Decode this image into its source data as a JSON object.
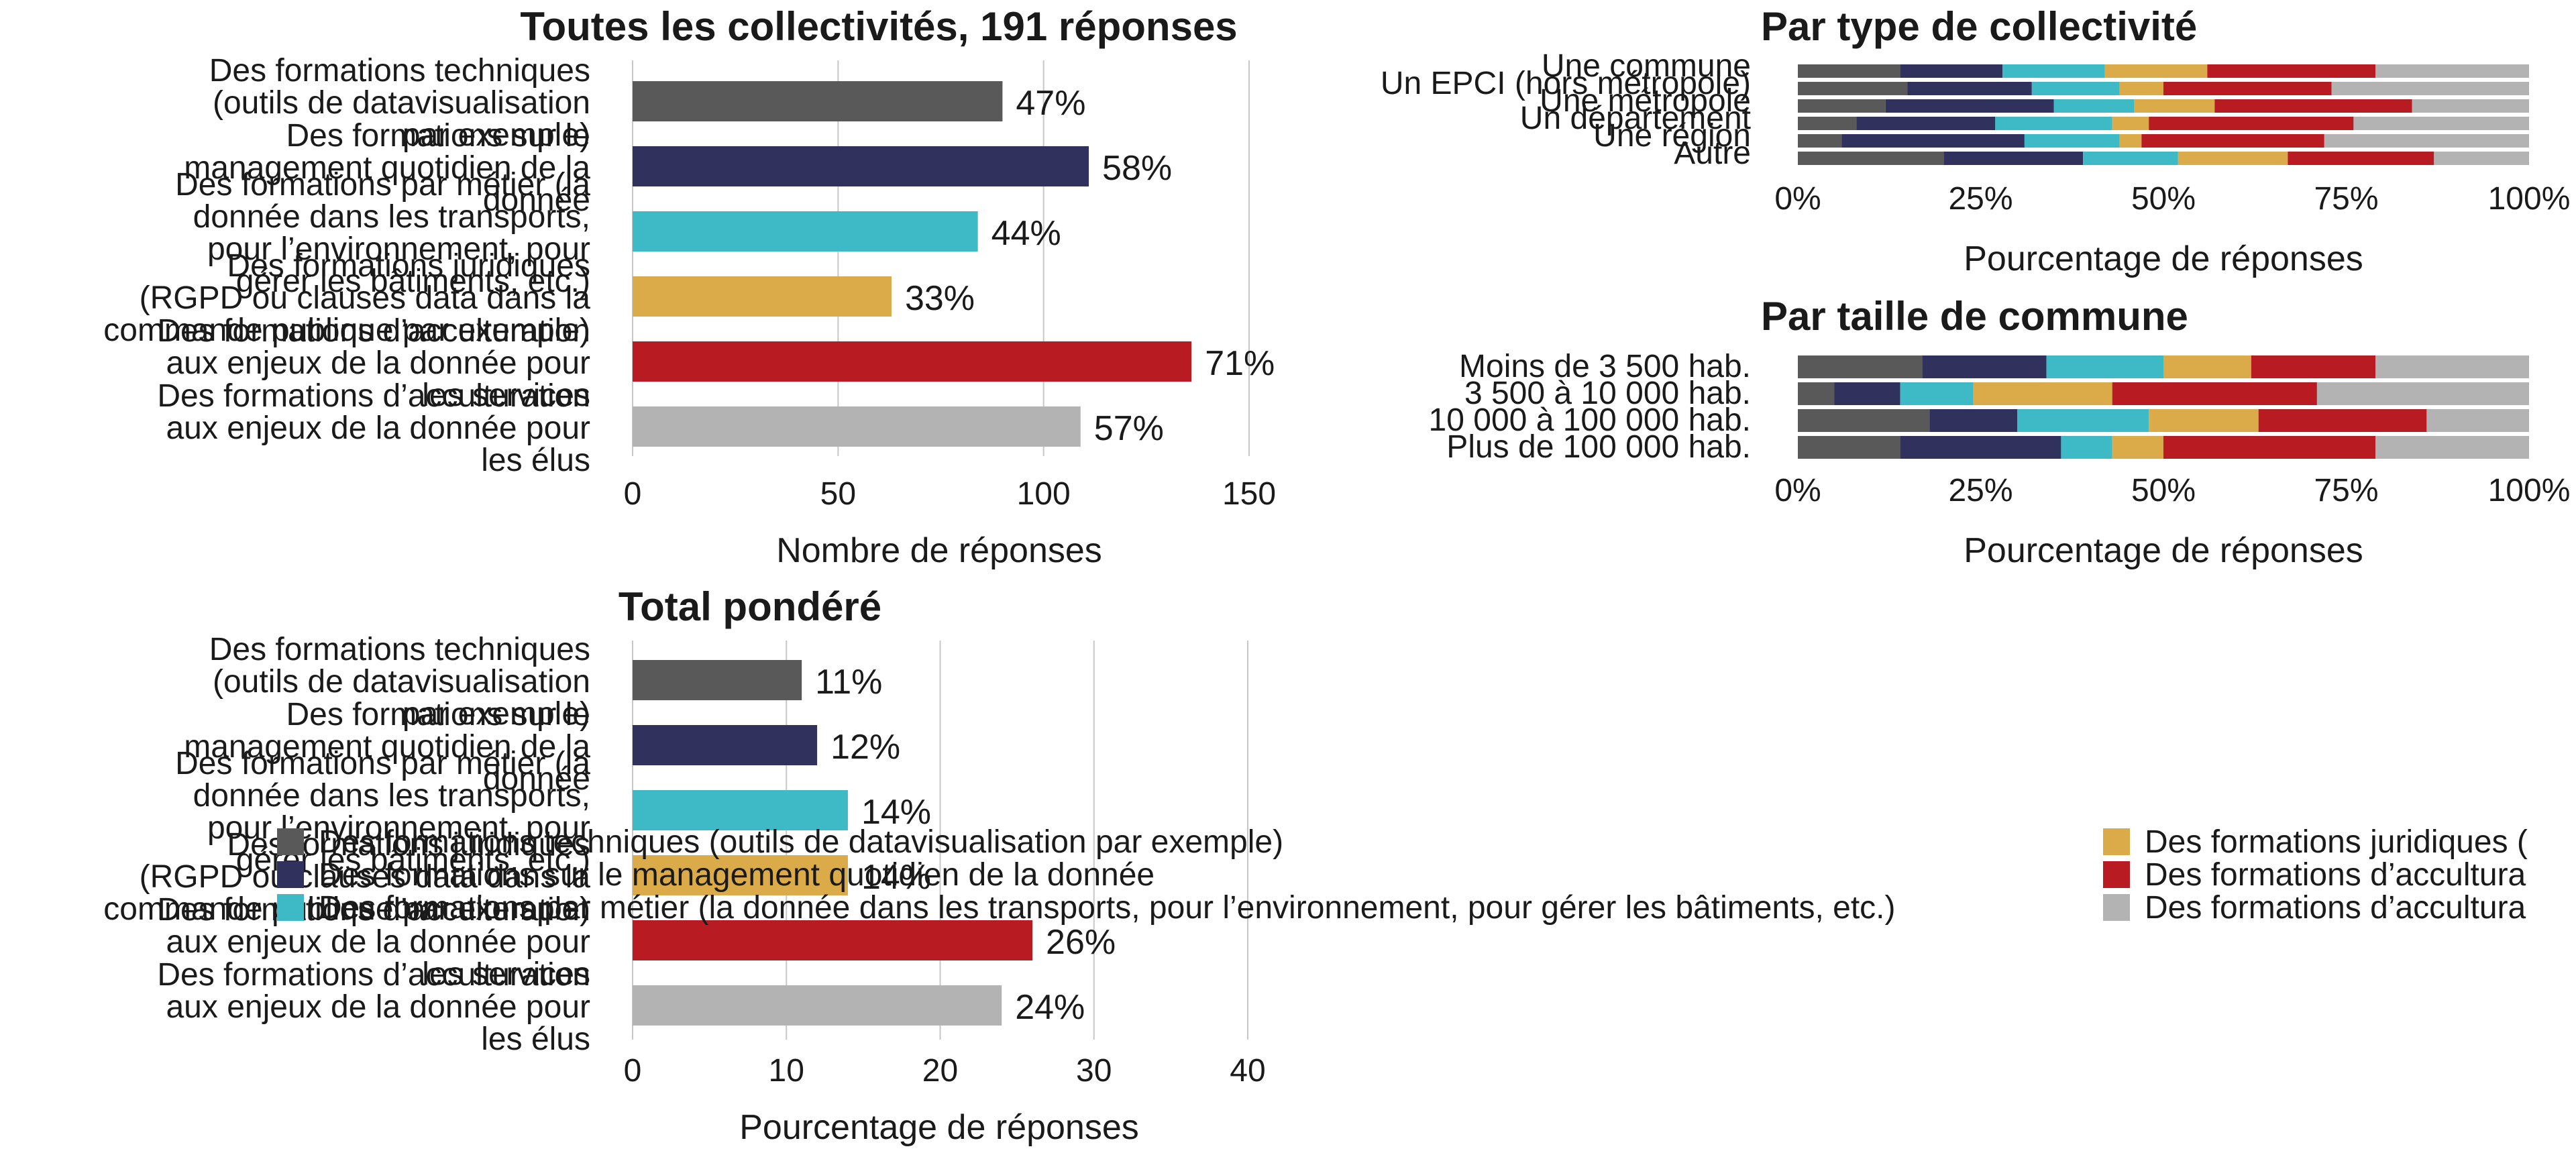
{
  "colors": {
    "techniques": "#595959",
    "management": "#31315e",
    "metier": "#3ebac6",
    "juridiques": "#dbab49",
    "acculturation_services": "#b81b21",
    "acculturation_elus": "#b3b3b3"
  },
  "legend": {
    "items": [
      {
        "label": "Des formations techniques (outils de datavisualisation par exemple)",
        "color": "#595959"
      },
      {
        "label": "Des formations sur le management quotidien de la donnée",
        "color": "#31315e"
      },
      {
        "label": "Des formations par métier (la donnée dans les transports, pour l’environnement, pour gérer les bâtiments, etc.)",
        "color": "#3ebac6"
      },
      {
        "label": "Des formations juridiques (",
        "color": "#dbab49"
      },
      {
        "label": "Des formations d’accultura",
        "color": "#b81b21"
      },
      {
        "label": "Des formations d’accultura",
        "color": "#b3b3b3"
      }
    ]
  },
  "chart_data": [
    {
      "id": "total",
      "type": "bar",
      "orientation": "horizontal",
      "title": "Toutes les collectivités, 191 réponses",
      "xlabel": "Nombre de réponses",
      "xlim": [
        0,
        150
      ],
      "xticks": [
        0,
        50,
        100,
        150
      ],
      "grid": true,
      "categories": [
        [
          "Des formations techniques",
          "(outils de datavisualisation",
          "par exemple)"
        ],
        [
          "Des formations sur le",
          "management quotidien de la",
          "donnée"
        ],
        [
          "Des formations par métier (la",
          "donnée dans les transports,",
          "pour l’environnement, pour",
          "gérer les bâtiments, etc.)"
        ],
        [
          "Des formations juridiques",
          "(RGPD ou clauses data dans la",
          "commande publique par exemple)"
        ],
        [
          "Des formations d’acculturation",
          "aux enjeux de la donnée pour",
          "les services"
        ],
        [
          "Des formations d’acculturation",
          "aux enjeux de la donnée pour",
          "les élus"
        ]
      ],
      "values": [
        90,
        111,
        84,
        63,
        136,
        109
      ],
      "data_labels": [
        "47%",
        "58%",
        "44%",
        "33%",
        "71%",
        "57%"
      ]
    },
    {
      "id": "by_type",
      "type": "bar",
      "orientation": "horizontal",
      "stacked": "percent",
      "title": "Par type de collectivité",
      "xlabel": "Pourcentage de réponses",
      "xlim": [
        0,
        100
      ],
      "xtick_labels": [
        "0%",
        "25%",
        "50%",
        "75%",
        "100%"
      ],
      "categories": [
        "Une commune",
        "Un EPCI (hors métropole)",
        "Une métropole",
        "Un département",
        "Une région",
        "Autre"
      ],
      "series": [
        {
          "values": [
            14,
            15,
            12,
            8,
            6,
            20
          ]
        },
        {
          "values": [
            14,
            17,
            23,
            19,
            25,
            19
          ]
        },
        {
          "values": [
            14,
            12,
            11,
            16,
            13,
            13
          ]
        },
        {
          "values": [
            14,
            6,
            11,
            5,
            3,
            15
          ]
        },
        {
          "values": [
            23,
            23,
            27,
            28,
            25,
            20
          ]
        },
        {
          "values": [
            21,
            27,
            16,
            24,
            28,
            13
          ]
        }
      ]
    },
    {
      "id": "by_size",
      "type": "bar",
      "orientation": "horizontal",
      "stacked": "percent",
      "title": "Par taille de commune",
      "xlabel": "Pourcentage de réponses",
      "xlim": [
        0,
        100
      ],
      "xtick_labels": [
        "0%",
        "25%",
        "50%",
        "75%",
        "100%"
      ],
      "categories": [
        "Moins de 3 500 hab.",
        "3 500 à 10 000 hab.",
        "10 000 à 100 000 hab.",
        "Plus de 100 000 hab."
      ],
      "series": [
        {
          "values": [
            17,
            5,
            18,
            14
          ]
        },
        {
          "values": [
            17,
            9,
            12,
            22
          ]
        },
        {
          "values": [
            16,
            10,
            18,
            7
          ]
        },
        {
          "values": [
            12,
            19,
            15,
            7
          ]
        },
        {
          "values": [
            17,
            28,
            23,
            29
          ]
        },
        {
          "values": [
            21,
            29,
            14,
            21
          ]
        }
      ]
    },
    {
      "id": "weighted",
      "type": "bar",
      "orientation": "horizontal",
      "title": "Total pondéré",
      "xlabel": "Pourcentage de réponses",
      "xlim": [
        0,
        40
      ],
      "xticks": [
        0,
        10,
        20,
        30,
        40
      ],
      "grid": true,
      "categories": [
        [
          "Des formations techniques",
          "(outils de datavisualisation",
          "par exemple)"
        ],
        [
          "Des formations sur le",
          "management quotidien de la",
          "donnée"
        ],
        [
          "Des formations par métier (la",
          "donnée dans les transports,",
          "pour l’environnement, pour",
          "gérer les bâtiments, etc.)"
        ],
        [
          "Des formations juridiques",
          "(RGPD ou clauses data dans la",
          "commande publique par exemple)"
        ],
        [
          "Des formations d’acculturation",
          "aux enjeux de la donnée pour",
          "les services"
        ],
        [
          "Des formations d’acculturation",
          "aux enjeux de la donnée pour",
          "les élus"
        ]
      ],
      "values": [
        11,
        12,
        14,
        14,
        26,
        24
      ],
      "data_labels": [
        "11%",
        "12%",
        "14%",
        "14%",
        "26%",
        "24%"
      ]
    }
  ]
}
